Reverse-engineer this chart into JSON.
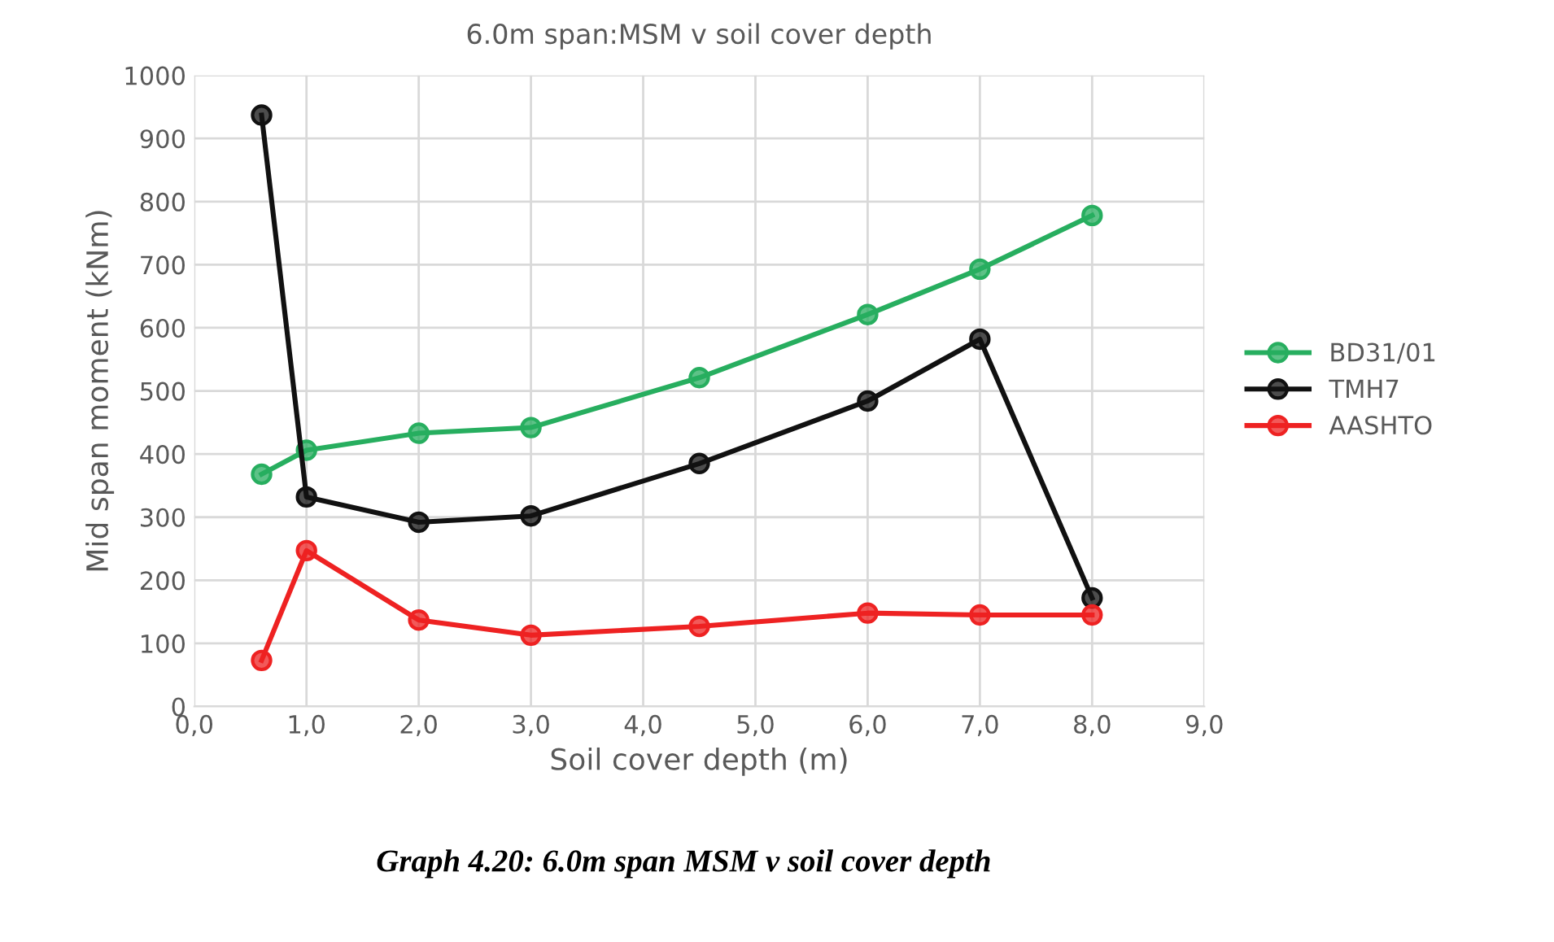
{
  "chart_data": {
    "type": "line",
    "title": "6.0m span:MSM v soil cover depth",
    "xlabel": "Soil cover depth (m)",
    "ylabel": "Mid span moment (kNm)",
    "annotations": [
      "Graph 4.20: 6.0m span MSM v soil cover depth"
    ],
    "x": [
      0.6,
      1.0,
      2.0,
      3.0,
      4.5,
      6.0,
      7.0,
      8.0
    ],
    "series": [
      {
        "name": "BD31/01",
        "color": "#27ae5f",
        "values": [
          368,
          406,
          433,
          442,
          521,
          621,
          693,
          778
        ]
      },
      {
        "name": "TMH7",
        "color": "#111111",
        "values": [
          937,
          332,
          292,
          302,
          385,
          484,
          582,
          172
        ]
      },
      {
        "name": "AASHTO",
        "color": "#ee2222",
        "values": [
          73,
          247,
          137,
          113,
          127,
          148,
          145,
          145
        ]
      }
    ],
    "xlim": [
      0,
      9
    ],
    "ylim": [
      0,
      1000
    ],
    "xticks": [
      {
        "value": 0,
        "label": "0,0"
      },
      {
        "value": 1,
        "label": "1,0"
      },
      {
        "value": 2,
        "label": "2,0"
      },
      {
        "value": 3,
        "label": "3,0"
      },
      {
        "value": 4,
        "label": "4,0"
      },
      {
        "value": 5,
        "label": "5,0"
      },
      {
        "value": 6,
        "label": "6,0"
      },
      {
        "value": 7,
        "label": "7,0"
      },
      {
        "value": 8,
        "label": "8,0"
      },
      {
        "value": 9,
        "label": "9,0"
      }
    ],
    "yticks": [
      0,
      100,
      200,
      300,
      400,
      500,
      600,
      700,
      800,
      900,
      1000
    ],
    "grid": true,
    "legend": "right",
    "marker": "circle",
    "line_style": "solid"
  }
}
